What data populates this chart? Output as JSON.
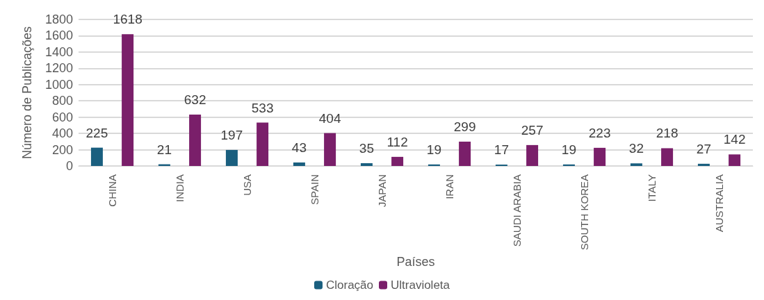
{
  "chart_data": {
    "type": "bar",
    "xlabel": "Países",
    "ylabel": "Número de Publicações",
    "categories": [
      "CHINA",
      "INDIA",
      "USA",
      "SPAIN",
      "JAPAN",
      "IRAN",
      "SAUDI ARABIA",
      "SOUTH KOREA",
      "ITALY",
      "AUSTRALIA"
    ],
    "series": [
      {
        "name": "Cloração",
        "color": "#1a5f7f",
        "values": [
          225,
          21,
          197,
          43,
          35,
          19,
          17,
          19,
          32,
          27
        ]
      },
      {
        "name": "Ultravioleta",
        "color": "#7a1f6a",
        "values": [
          1618,
          632,
          533,
          404,
          112,
          299,
          257,
          223,
          218,
          142
        ]
      }
    ],
    "ylim": [
      0,
      1800
    ],
    "yticks": [
      0,
      200,
      400,
      600,
      800,
      1000,
      1200,
      1400,
      1600,
      1800
    ],
    "grid": "y",
    "legend": "bottom",
    "data_labels": true
  }
}
